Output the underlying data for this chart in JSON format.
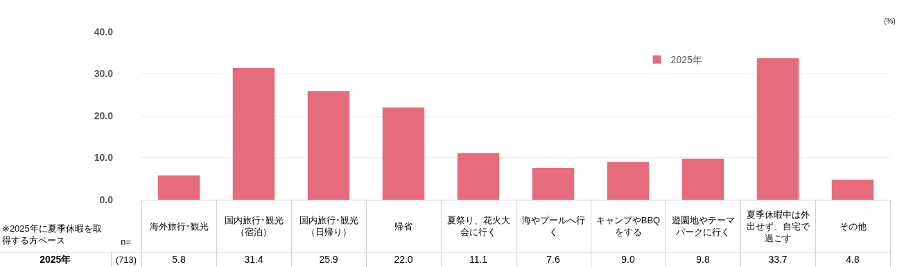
{
  "chart_data": {
    "type": "bar",
    "categories": [
      "海外旅行･観光",
      "国内旅行･観光（宿泊）",
      "国内旅行･観光（日帰り）",
      "帰省",
      "夏祭り、花火大会に行く",
      "海やプールへ行く",
      "キャンプやBBQをする",
      "遊園地やテーマパークに行く",
      "夏季休暇中は外出せず、自宅で過ごす",
      "その他"
    ],
    "series": [
      {
        "name": "2025年",
        "color": "#e66c7d",
        "values": [
          5.8,
          31.4,
          25.9,
          22.0,
          11.1,
          7.6,
          9.0,
          9.8,
          33.7,
          4.8
        ],
        "value_labels": [
          "5.8",
          "31.4",
          "25.9",
          "22.0",
          "11.1",
          "7.6",
          "9.0",
          "9.8",
          "33.7",
          "4.8"
        ]
      }
    ],
    "ylim": [
      0,
      40
    ],
    "yticks": [
      {
        "value": 0,
        "label": "0.0"
      },
      {
        "value": 10,
        "label": "10.0"
      },
      {
        "value": 20,
        "label": "20.0"
      },
      {
        "value": 30,
        "label": "30.0"
      },
      {
        "value": 40,
        "label": "40.0"
      }
    ],
    "grid": "y",
    "legend": "top right",
    "annotations": [
      "(%)",
      "※2025年に夏季休暇を取得する方ベース",
      "n=",
      "(713)"
    ]
  }
}
